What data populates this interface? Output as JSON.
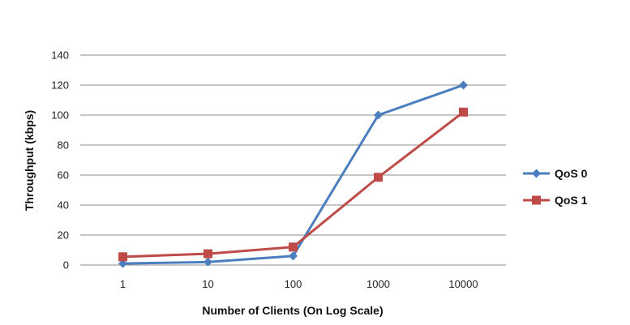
{
  "chart_data": {
    "type": "line",
    "x_scale": "log",
    "categories": [
      "1",
      "10",
      "100",
      "1000",
      "10000"
    ],
    "x": [
      1,
      10,
      100,
      1000,
      10000
    ],
    "series": [
      {
        "name": "QoS 0",
        "values": [
          1,
          2,
          6,
          100,
          120
        ],
        "color": "#4a7ebf",
        "marker": "diamond"
      },
      {
        "name": "QoS 1",
        "values": [
          5.5,
          7.5,
          12,
          58.5,
          102
        ],
        "color": "#be4b48",
        "marker": "square"
      }
    ],
    "title": "",
    "xlabel": "Number of Clients (On Log Scale)",
    "ylabel": "Throughput (kbps)",
    "ylim": [
      0,
      140
    ],
    "yticks": [
      "0",
      "20",
      "40",
      "60",
      "80",
      "100",
      "120",
      "140"
    ],
    "grid": "horizontal",
    "legend_position": "right"
  }
}
